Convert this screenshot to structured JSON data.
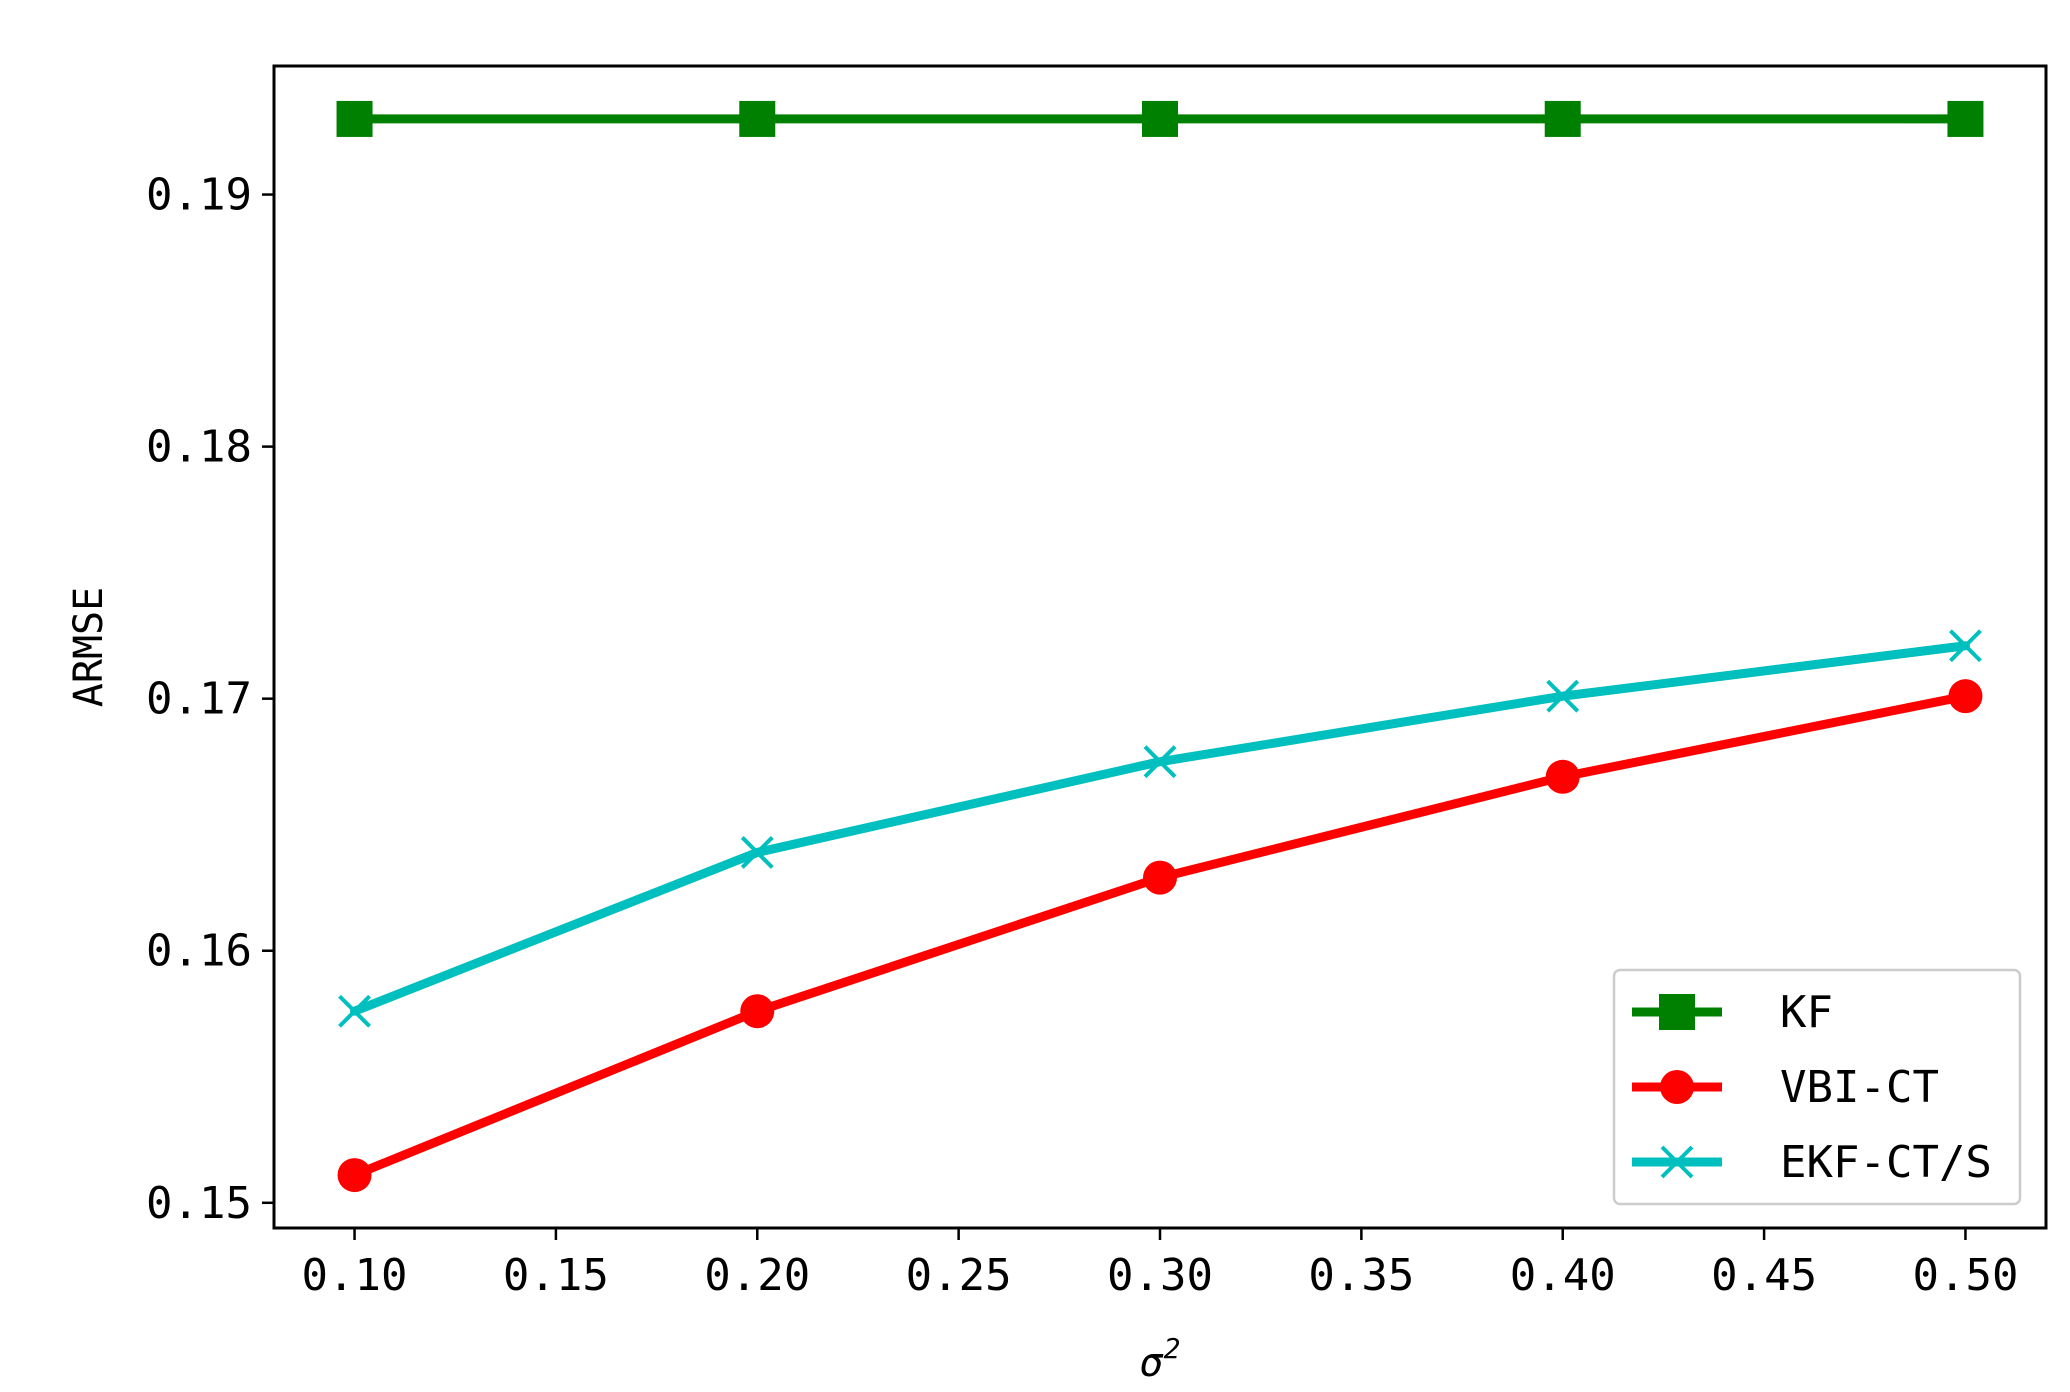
{
  "chart_data": {
    "type": "line",
    "title": "",
    "xlabel": "σ",
    "xlabel_superscript": "2",
    "ylabel": "ARMSE",
    "x": [
      0.1,
      0.2,
      0.3,
      0.4,
      0.5
    ],
    "xlim": [
      0.08,
      0.52
    ],
    "ylim": [
      0.149,
      0.1951
    ],
    "xticks": [
      0.1,
      0.15,
      0.2,
      0.25,
      0.3,
      0.35,
      0.4,
      0.45,
      0.5
    ],
    "xtick_labels": [
      "0.10",
      "0.15",
      "0.20",
      "0.25",
      "0.30",
      "0.35",
      "0.40",
      "0.45",
      "0.50"
    ],
    "yticks": [
      0.15,
      0.16,
      0.17,
      0.18,
      0.19
    ],
    "ytick_labels": [
      "0.15",
      "0.16",
      "0.17",
      "0.18",
      "0.19"
    ],
    "grid": false,
    "legend_position": "lower-right",
    "series": [
      {
        "name": "KF",
        "color": "#008000",
        "marker": "square",
        "values": [
          0.193,
          0.193,
          0.193,
          0.193,
          0.193
        ]
      },
      {
        "name": "VBI-CT",
        "color": "#ff0000",
        "marker": "circle",
        "values": [
          0.1511,
          0.1576,
          0.1629,
          0.1669,
          0.1701
        ]
      },
      {
        "name": "EKF-CT/S",
        "color": "#00bfbf",
        "marker": "x",
        "values": [
          0.1576,
          0.1639,
          0.1675,
          0.1701,
          0.1721
        ]
      }
    ]
  }
}
